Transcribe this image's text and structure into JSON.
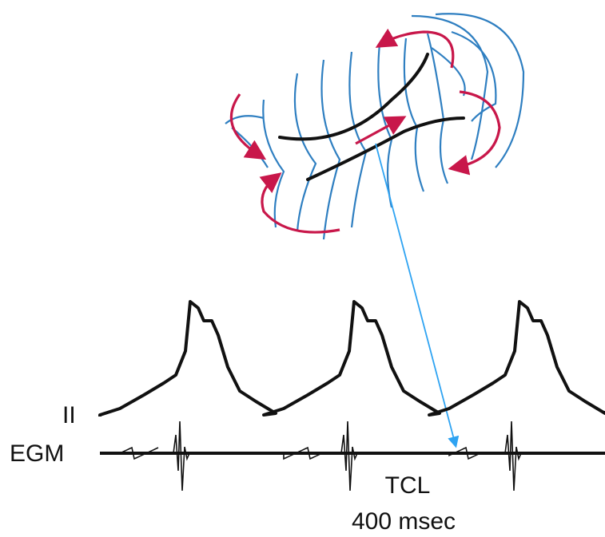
{
  "labels": {
    "lead_ii": "II",
    "egm": "EGM",
    "tcl": "TCL",
    "tcl_value": "400 msec"
  }
}
